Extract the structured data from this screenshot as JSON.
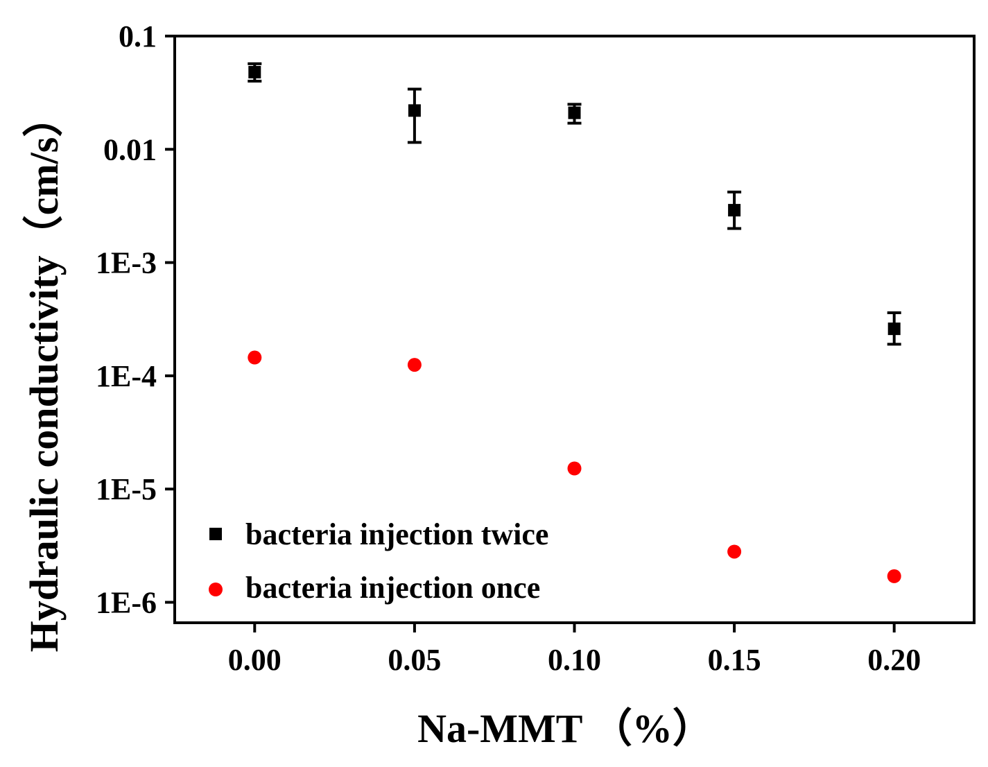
{
  "chart_data": {
    "type": "scatter",
    "title": "",
    "xlabel": "Na-MMT （%）",
    "ylabel": "Hydraulic conductivity（cm/s）",
    "x_scale": "linear",
    "y_scale": "log",
    "xlim": [
      -0.025,
      0.225
    ],
    "ylim": [
      6e-07,
      0.1
    ],
    "x_ticks": [
      0.0,
      0.05,
      0.1,
      0.15,
      0.2
    ],
    "x_tick_labels": [
      "0.00",
      "0.05",
      "0.10",
      "0.15",
      "0.20"
    ],
    "y_ticks": [
      0.1,
      0.01,
      0.001,
      0.0001,
      1e-05,
      1e-06
    ],
    "y_tick_labels": [
      "0.1",
      "0.01",
      "1E-3",
      "1E-4",
      "1E-5",
      "1E-6"
    ],
    "grid": false,
    "legend_position": "bottom-left",
    "series": [
      {
        "name": "bacteria injection twice",
        "marker": "square",
        "color": "#000000",
        "x": [
          0.0,
          0.05,
          0.1,
          0.15,
          0.2
        ],
        "y": [
          0.048,
          0.022,
          0.021,
          0.0029,
          0.00026
        ],
        "err_low": [
          0.04,
          0.0115,
          0.017,
          0.002,
          0.00019
        ],
        "err_high": [
          0.057,
          0.034,
          0.025,
          0.0042,
          0.00036
        ]
      },
      {
        "name": "bacteria injection once",
        "marker": "circle",
        "color": "#ff0000",
        "x": [
          0.0,
          0.05,
          0.1,
          0.15,
          0.2
        ],
        "y": [
          0.000145,
          0.000125,
          1.52e-05,
          2.8e-06,
          1.7e-06
        ]
      }
    ]
  }
}
